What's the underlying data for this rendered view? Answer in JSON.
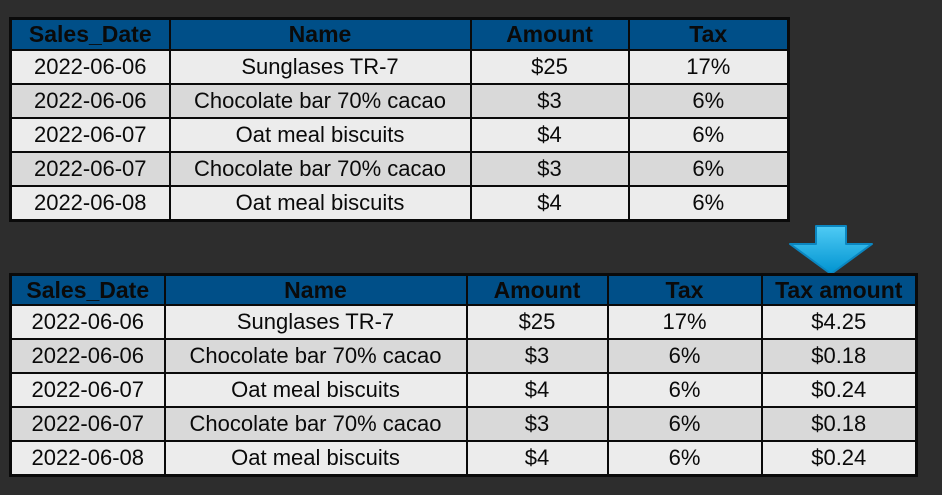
{
  "source_table": {
    "headers": [
      "Sales_Date",
      "Name",
      "Amount",
      "Tax"
    ],
    "rows": [
      [
        "2022-06-06",
        "Sunglases TR-7",
        "$25",
        "17%"
      ],
      [
        "2022-06-06",
        "Chocolate bar 70% cacao",
        "$3",
        "6%"
      ],
      [
        "2022-06-07",
        "Oat meal biscuits",
        "$4",
        "6%"
      ],
      [
        "2022-06-07",
        "Chocolate bar 70% cacao",
        "$3",
        "6%"
      ],
      [
        "2022-06-08",
        "Oat meal biscuits",
        "$4",
        "6%"
      ]
    ]
  },
  "result_table": {
    "headers": [
      "Sales_Date",
      "Name",
      "Amount",
      "Tax",
      "Tax amount"
    ],
    "rows": [
      [
        "2022-06-06",
        "Sunglases TR-7",
        "$25",
        "17%",
        "$4.25"
      ],
      [
        "2022-06-06",
        "Chocolate bar 70% cacao",
        "$3",
        "6%",
        "$0.18"
      ],
      [
        "2022-06-07",
        "Oat meal biscuits",
        "$4",
        "6%",
        "$0.24"
      ],
      [
        "2022-06-07",
        "Chocolate bar 70% cacao",
        "$3",
        "6%",
        "$0.18"
      ],
      [
        "2022-06-08",
        "Oat meal biscuits",
        "$4",
        "6%",
        "$0.24"
      ]
    ]
  },
  "arrow": {
    "icon": "arrow-down-icon",
    "color": "#00b0f0"
  },
  "colors": {
    "background": "#2d2d2d",
    "header_fill": "#004f88",
    "row_light": "#ececec",
    "row_dark": "#d9d9d9",
    "border": "#0a0a0a"
  }
}
